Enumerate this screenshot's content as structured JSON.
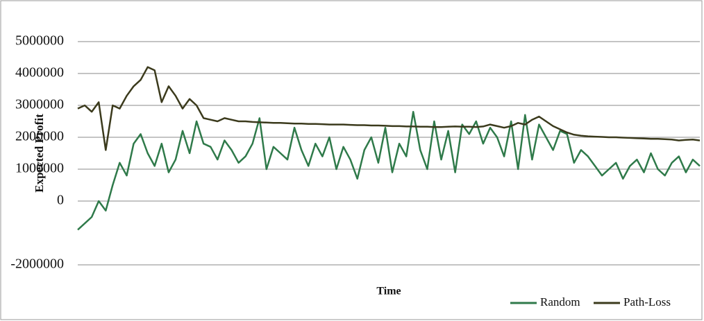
{
  "chart_data": {
    "type": "line",
    "ylabel": "Expected Profit",
    "xlabel": "Time",
    "ylim": [
      -2000000,
      5000000
    ],
    "yticks": [
      5000000,
      4000000,
      3000000,
      2000000,
      1000000,
      0,
      -2000000
    ],
    "grid": true,
    "legend": "bottom-right",
    "series": [
      {
        "name": "Random",
        "color": "#2f7a4a",
        "values": [
          -900000,
          -700000,
          -500000,
          0,
          -300000,
          500000,
          1200000,
          800000,
          1800000,
          2100000,
          1500000,
          1100000,
          1800000,
          900000,
          1300000,
          2200000,
          1500000,
          2500000,
          1800000,
          1700000,
          1300000,
          1900000,
          1600000,
          1200000,
          1400000,
          1800000,
          2600000,
          1000000,
          1700000,
          1500000,
          1300000,
          2300000,
          1600000,
          1100000,
          1800000,
          1400000,
          2000000,
          1000000,
          1700000,
          1300000,
          700000,
          1600000,
          2000000,
          1200000,
          2300000,
          900000,
          1800000,
          1400000,
          2800000,
          1600000,
          1000000,
          2500000,
          1300000,
          2200000,
          900000,
          2400000,
          2100000,
          2500000,
          1800000,
          2300000,
          2000000,
          1400000,
          2500000,
          1000000,
          2700000,
          1300000,
          2400000,
          2000000,
          1600000,
          2200000,
          2100000,
          1200000,
          1600000,
          1400000,
          1100000,
          800000,
          1000000,
          1200000,
          700000,
          1100000,
          1300000,
          900000,
          1500000,
          1000000,
          800000,
          1200000,
          1400000,
          900000,
          1300000,
          1100000
        ]
      },
      {
        "name": "Path-Loss",
        "color": "#3b3a1c",
        "values": [
          2900000,
          3000000,
          2800000,
          3100000,
          1600000,
          3000000,
          2900000,
          3300000,
          3600000,
          3800000,
          4200000,
          4100000,
          3100000,
          3600000,
          3300000,
          2900000,
          3200000,
          3000000,
          2600000,
          2550000,
          2500000,
          2600000,
          2550000,
          2500000,
          2500000,
          2480000,
          2470000,
          2460000,
          2450000,
          2450000,
          2440000,
          2430000,
          2430000,
          2420000,
          2420000,
          2410000,
          2400000,
          2400000,
          2400000,
          2390000,
          2380000,
          2380000,
          2370000,
          2370000,
          2360000,
          2350000,
          2350000,
          2340000,
          2340000,
          2330000,
          2330000,
          2320000,
          2320000,
          2330000,
          2340000,
          2330000,
          2330000,
          2320000,
          2340000,
          2400000,
          2350000,
          2300000,
          2350000,
          2450000,
          2400000,
          2550000,
          2650000,
          2500000,
          2350000,
          2250000,
          2150000,
          2080000,
          2050000,
          2030000,
          2020000,
          2010000,
          2000000,
          2000000,
          1990000,
          1980000,
          1970000,
          1960000,
          1950000,
          1950000,
          1940000,
          1930000,
          1900000,
          1920000,
          1930000,
          1900000
        ]
      }
    ]
  }
}
